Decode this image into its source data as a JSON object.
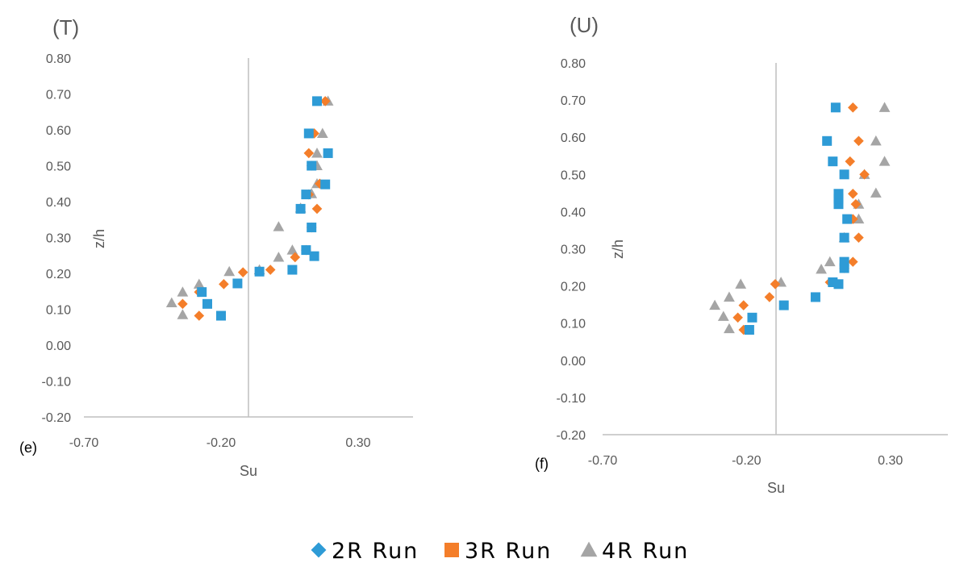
{
  "chart_data": [
    {
      "type": "scatter",
      "title": "(T)",
      "subplot_label": "(e)",
      "xlabel": "Su",
      "ylabel": "z/h",
      "xlim": [
        -0.7,
        0.5
      ],
      "ylim": [
        -0.2,
        0.8
      ],
      "x_ticks": [
        "-0.70",
        "-0.20",
        "0.30"
      ],
      "y_ticks": [
        "-0.20",
        "-0.10",
        "0.00",
        "0.10",
        "0.20",
        "0.30",
        "0.40",
        "0.50",
        "0.60",
        "0.70",
        "0.80"
      ],
      "series": [
        {
          "name": "2R Run",
          "points": [
            [
              -0.2,
              0.082
            ],
            [
              -0.25,
              0.115
            ],
            [
              -0.27,
              0.148
            ],
            [
              -0.14,
              0.172
            ],
            [
              -0.06,
              0.205
            ],
            [
              0.06,
              0.21
            ],
            [
              0.11,
              0.265
            ],
            [
              0.14,
              0.248
            ],
            [
              0.13,
              0.328
            ],
            [
              0.09,
              0.38
            ],
            [
              0.11,
              0.42
            ],
            [
              0.18,
              0.448
            ],
            [
              0.13,
              0.5
            ],
            [
              0.19,
              0.535
            ],
            [
              0.12,
              0.59
            ],
            [
              0.15,
              0.68
            ]
          ]
        },
        {
          "name": "3R Run",
          "points": [
            [
              -0.28,
              0.082
            ],
            [
              -0.34,
              0.115
            ],
            [
              -0.28,
              0.148
            ],
            [
              -0.19,
              0.17
            ],
            [
              -0.12,
              0.203
            ],
            [
              -0.02,
              0.21
            ],
            [
              0.07,
              0.245
            ],
            [
              0.11,
              0.265
            ],
            [
              0.13,
              0.328
            ],
            [
              0.15,
              0.38
            ],
            [
              0.12,
              0.42
            ],
            [
              0.16,
              0.45
            ],
            [
              0.13,
              0.5
            ],
            [
              0.12,
              0.535
            ],
            [
              0.14,
              0.59
            ],
            [
              0.18,
              0.68
            ]
          ]
        },
        {
          "name": "4R Run",
          "points": [
            [
              -0.34,
              0.085
            ],
            [
              -0.38,
              0.118
            ],
            [
              -0.34,
              0.148
            ],
            [
              -0.28,
              0.17
            ],
            [
              -0.17,
              0.205
            ],
            [
              -0.06,
              0.21
            ],
            [
              0.01,
              0.245
            ],
            [
              0.06,
              0.265
            ],
            [
              0.01,
              0.33
            ],
            [
              0.09,
              0.382
            ],
            [
              0.13,
              0.422
            ],
            [
              0.15,
              0.45
            ],
            [
              0.15,
              0.5
            ],
            [
              0.15,
              0.535
            ],
            [
              0.17,
              0.59
            ],
            [
              0.19,
              0.68
            ]
          ]
        }
      ]
    },
    {
      "type": "scatter",
      "title": "(U)",
      "subplot_label": "(f)",
      "xlabel": "Su",
      "ylabel": "z/h",
      "xlim": [
        -0.7,
        0.5
      ],
      "ylim": [
        -0.2,
        0.8
      ],
      "x_ticks": [
        "-0.70",
        "-0.20",
        "0.30"
      ],
      "y_ticks": [
        "-0.20",
        "-0.10",
        "0.00",
        "0.10",
        "0.20",
        "0.30",
        "0.40",
        "0.50",
        "0.60",
        "0.70",
        "0.80"
      ],
      "series": [
        {
          "name": "2R Run",
          "points": [
            [
              -0.19,
              0.082
            ],
            [
              -0.18,
              0.115
            ],
            [
              -0.07,
              0.148
            ],
            [
              0.04,
              0.17
            ],
            [
              0.12,
              0.205
            ],
            [
              0.1,
              0.21
            ],
            [
              0.14,
              0.248
            ],
            [
              0.14,
              0.265
            ],
            [
              0.14,
              0.33
            ],
            [
              0.15,
              0.38
            ],
            [
              0.12,
              0.42
            ],
            [
              0.12,
              0.435
            ],
            [
              0.12,
              0.448
            ],
            [
              0.14,
              0.5
            ],
            [
              0.1,
              0.535
            ],
            [
              0.08,
              0.59
            ],
            [
              0.11,
              0.68
            ]
          ]
        },
        {
          "name": "3R Run",
          "points": [
            [
              -0.21,
              0.082
            ],
            [
              -0.23,
              0.115
            ],
            [
              -0.21,
              0.148
            ],
            [
              -0.12,
              0.17
            ],
            [
              -0.1,
              0.205
            ],
            [
              0.09,
              0.21
            ],
            [
              0.14,
              0.248
            ],
            [
              0.17,
              0.265
            ],
            [
              0.19,
              0.33
            ],
            [
              0.17,
              0.38
            ],
            [
              0.18,
              0.42
            ],
            [
              0.17,
              0.448
            ],
            [
              0.21,
              0.5
            ],
            [
              0.16,
              0.535
            ],
            [
              0.19,
              0.59
            ],
            [
              0.17,
              0.68
            ]
          ]
        },
        {
          "name": "4R Run",
          "points": [
            [
              -0.26,
              0.085
            ],
            [
              -0.28,
              0.118
            ],
            [
              -0.31,
              0.148
            ],
            [
              -0.26,
              0.17
            ],
            [
              -0.22,
              0.205
            ],
            [
              -0.08,
              0.21
            ],
            [
              0.06,
              0.245
            ],
            [
              0.09,
              0.265
            ],
            [
              0.14,
              0.33
            ],
            [
              0.19,
              0.38
            ],
            [
              0.19,
              0.42
            ],
            [
              0.25,
              0.45
            ],
            [
              0.21,
              0.5
            ],
            [
              0.28,
              0.535
            ],
            [
              0.25,
              0.59
            ],
            [
              0.28,
              0.68
            ]
          ]
        }
      ]
    }
  ],
  "colors": {
    "2R Run": "#2e9bd6",
    "3R Run": "#f47e2a",
    "4R Run": "#a5a5a5",
    "axis": "#bfbfbf",
    "text": "#595959"
  },
  "legend": [
    {
      "name": "2R Run",
      "label": "2R Run",
      "marker": "diamond"
    },
    {
      "name": "3R Run",
      "label": "3R Run",
      "marker": "square"
    },
    {
      "name": "4R Run",
      "label": "4R Run",
      "marker": "triangle"
    }
  ]
}
